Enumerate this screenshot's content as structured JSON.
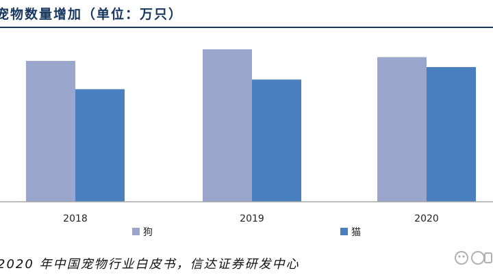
{
  "chart_data": {
    "type": "bar",
    "title": "宠物数量增加（单位：万只）",
    "categories": [
      "2018",
      "2019",
      "2020"
    ],
    "series": [
      {
        "name": "狗",
        "values": [
          5085,
          5503,
          5222
        ],
        "color": "#9aa6cc"
      },
      {
        "name": "猫",
        "values": [
          4064,
          4412,
          4862
        ],
        "color": "#4a7fbf"
      }
    ],
    "ylim": [
      0,
      6000
    ],
    "grid": false,
    "legend_position": "bottom"
  },
  "source": "2020 年中国宠物行业白皮书，信达证券研发中心",
  "watermark_icon": "watermark-logo-icon"
}
